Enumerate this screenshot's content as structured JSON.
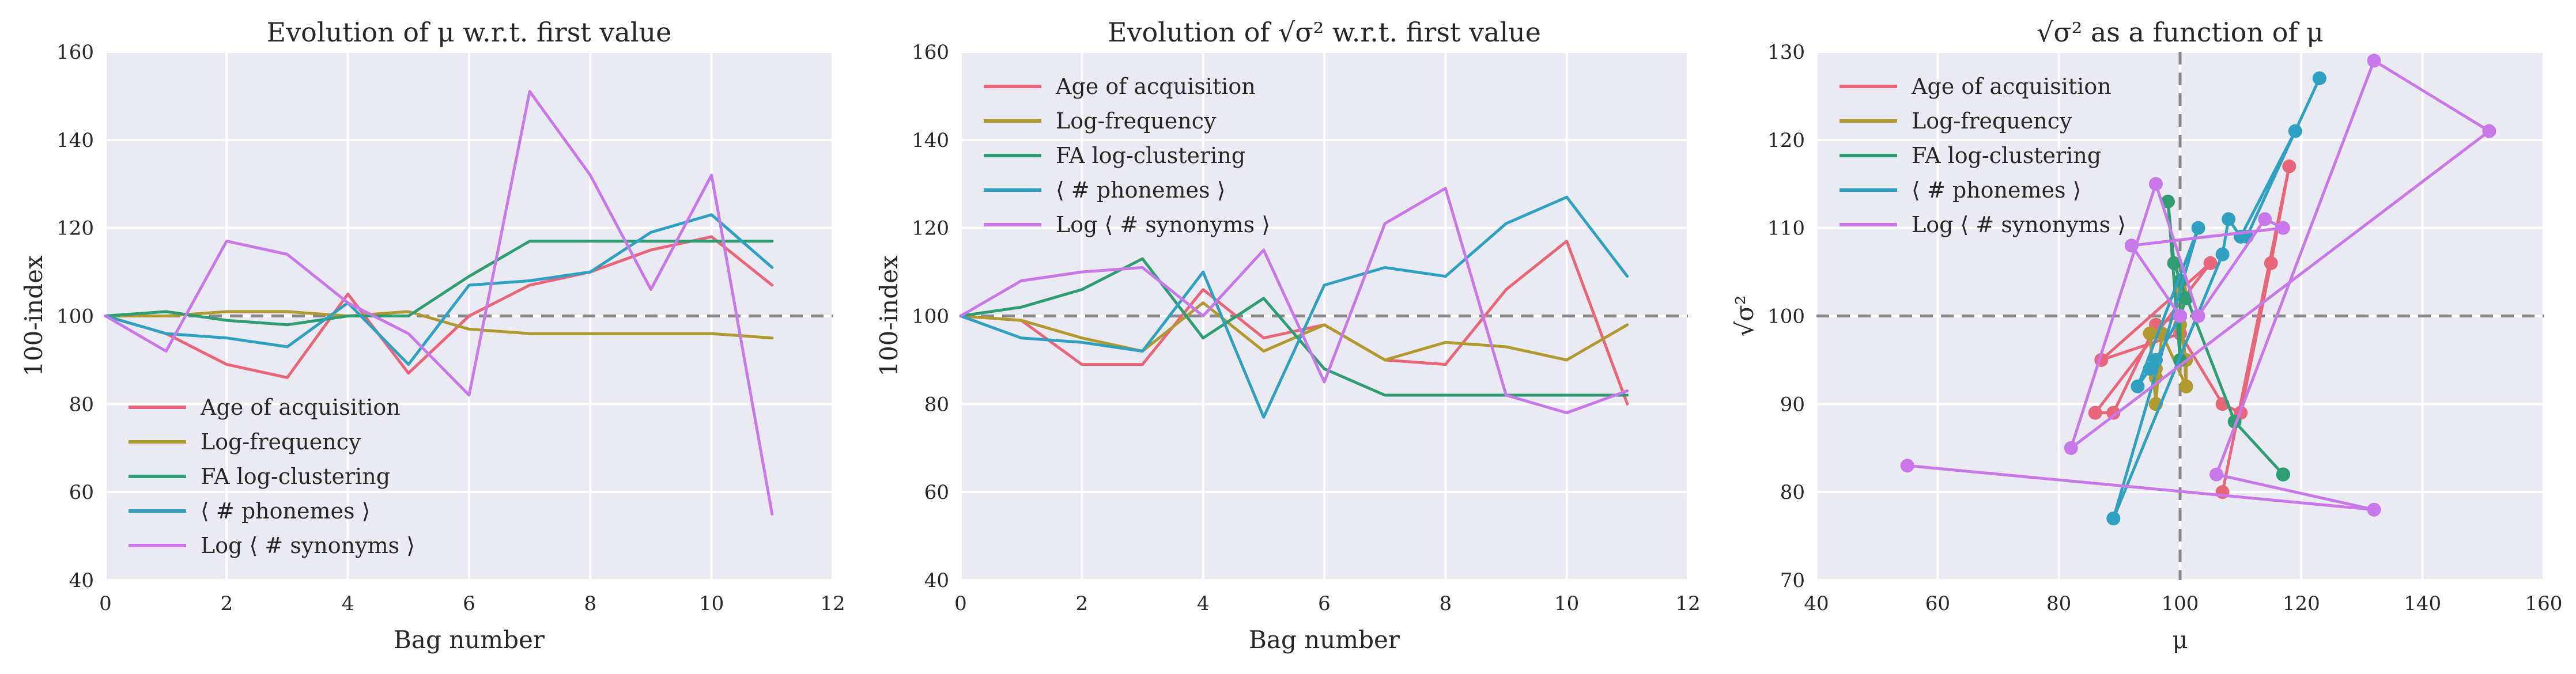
{
  "colors": {
    "age": "#e8657a",
    "logfreq": "#b09a30",
    "fa": "#2e9e72",
    "phon": "#30a0c0",
    "syn": "#c878e8",
    "background": "#eaeaf2",
    "grid": "#ffffff",
    "reference": "#888888"
  },
  "chart_data": [
    {
      "type": "line",
      "title": "Evolution of μ w.r.t. first value",
      "xlabel": "Bag number",
      "ylabel": "100-index",
      "xlim": [
        0,
        12
      ],
      "ylim": [
        40,
        160
      ],
      "xticks": [
        "0",
        "2",
        "4",
        "6",
        "8",
        "10",
        "12"
      ],
      "yticks": [
        "40",
        "60",
        "80",
        "100",
        "120",
        "140",
        "160"
      ],
      "reference_line": {
        "axis": "y",
        "value": 100,
        "style": "dashed"
      },
      "grid": true,
      "legend_position": "lower-left",
      "x": [
        0,
        1,
        2,
        3,
        4,
        5,
        6,
        7,
        8,
        9,
        10,
        11
      ],
      "series": [
        {
          "name": "Age of acquisition",
          "color_key": "age",
          "values": [
            100,
            96,
            89,
            86,
            105,
            87,
            100,
            107,
            110,
            115,
            118,
            107
          ]
        },
        {
          "name": "Log-frequency",
          "color_key": "logfreq",
          "values": [
            100,
            100,
            101,
            101,
            100,
            101,
            97,
            96,
            96,
            96,
            96,
            95
          ]
        },
        {
          "name": "FA log-clustering",
          "color_key": "fa",
          "values": [
            100,
            101,
            99,
            98,
            100,
            100,
            109,
            117,
            117,
            117,
            117,
            117
          ]
        },
        {
          "name": "⟨ # phonemes ⟩",
          "color_key": "phon",
          "values": [
            100,
            96,
            95,
            93,
            103,
            89,
            107,
            108,
            110,
            119,
            123,
            111
          ]
        },
        {
          "name": "Log ⟨ # synonyms ⟩",
          "color_key": "syn",
          "values": [
            100,
            92,
            117,
            114,
            103,
            96,
            82,
            151,
            132,
            106,
            132,
            55
          ]
        }
      ]
    },
    {
      "type": "line",
      "title": "Evolution of √σ² w.r.t. first value",
      "xlabel": "Bag number",
      "ylabel": "100-index",
      "xlim": [
        0,
        12
      ],
      "ylim": [
        40,
        160
      ],
      "xticks": [
        "0",
        "2",
        "4",
        "6",
        "8",
        "10",
        "12"
      ],
      "yticks": [
        "40",
        "60",
        "80",
        "100",
        "120",
        "140",
        "160"
      ],
      "reference_line": {
        "axis": "y",
        "value": 100,
        "style": "dashed"
      },
      "grid": true,
      "legend_position": "upper-left",
      "x": [
        0,
        1,
        2,
        3,
        4,
        5,
        6,
        7,
        8,
        9,
        10,
        11
      ],
      "series": [
        {
          "name": "Age of acquisition",
          "color_key": "age",
          "values": [
            100,
            99,
            89,
            89,
            106,
            95,
            98,
            90,
            89,
            106,
            117,
            80
          ]
        },
        {
          "name": "Log-frequency",
          "color_key": "logfreq",
          "values": [
            100,
            99,
            95,
            92,
            103,
            92,
            98,
            90,
            94,
            93,
            90,
            98
          ]
        },
        {
          "name": "FA log-clustering",
          "color_key": "fa",
          "values": [
            100,
            102,
            106,
            113,
            95,
            104,
            88,
            82,
            82,
            82,
            82,
            82
          ]
        },
        {
          "name": "⟨ # phonemes ⟩",
          "color_key": "phon",
          "values": [
            100,
            95,
            94,
            92,
            110,
            77,
            107,
            111,
            109,
            121,
            127,
            109
          ]
        },
        {
          "name": "Log ⟨ # synonyms ⟩",
          "color_key": "syn",
          "values": [
            100,
            108,
            110,
            111,
            100,
            115,
            85,
            121,
            129,
            82,
            78,
            83
          ]
        }
      ]
    },
    {
      "type": "line",
      "title": "√σ² as a function of μ",
      "xlabel": "μ",
      "ylabel": "√σ²",
      "xlim": [
        40,
        160
      ],
      "ylim": [
        70,
        130
      ],
      "xticks": [
        "40",
        "60",
        "80",
        "100",
        "120",
        "140",
        "160"
      ],
      "yticks": [
        "70",
        "80",
        "90",
        "100",
        "110",
        "120",
        "130"
      ],
      "reference_lines": [
        {
          "axis": "x",
          "value": 100,
          "style": "dashed"
        },
        {
          "axis": "y",
          "value": 100,
          "style": "dashed"
        }
      ],
      "grid": true,
      "legend_position": "upper-left",
      "markers": true,
      "series": [
        {
          "name": "Age of acquisition",
          "color_key": "age",
          "x": [
            100,
            96,
            89,
            86,
            105,
            87,
            100,
            107,
            110,
            115,
            118,
            107
          ],
          "y": [
            100,
            99,
            89,
            89,
            106,
            95,
            98,
            90,
            89,
            106,
            117,
            80
          ]
        },
        {
          "name": "Log-frequency",
          "color_key": "logfreq",
          "x": [
            100,
            100,
            101,
            101,
            100,
            101,
            97,
            96,
            96,
            96,
            96,
            95
          ],
          "y": [
            100,
            99,
            95,
            92,
            103,
            92,
            98,
            90,
            94,
            93,
            90,
            98
          ]
        },
        {
          "name": "FA log-clustering",
          "color_key": "fa",
          "x": [
            100,
            101,
            99,
            98,
            100,
            100,
            109,
            117,
            117,
            117,
            117,
            117
          ],
          "y": [
            100,
            102,
            106,
            113,
            95,
            104,
            88,
            82,
            82,
            82,
            82,
            82
          ]
        },
        {
          "name": "⟨ # phonemes ⟩",
          "color_key": "phon",
          "x": [
            100,
            96,
            95,
            93,
            103,
            89,
            107,
            108,
            110,
            119,
            123,
            111
          ],
          "y": [
            100,
            95,
            94,
            92,
            110,
            77,
            107,
            111,
            109,
            121,
            127,
            109
          ]
        },
        {
          "name": "Log ⟨ # synonyms ⟩",
          "color_key": "syn",
          "x": [
            100,
            92,
            117,
            114,
            103,
            96,
            82,
            151,
            132,
            106,
            132,
            55
          ],
          "y": [
            100,
            108,
            110,
            111,
            100,
            115,
            85,
            121,
            129,
            82,
            78,
            83
          ]
        }
      ]
    }
  ]
}
